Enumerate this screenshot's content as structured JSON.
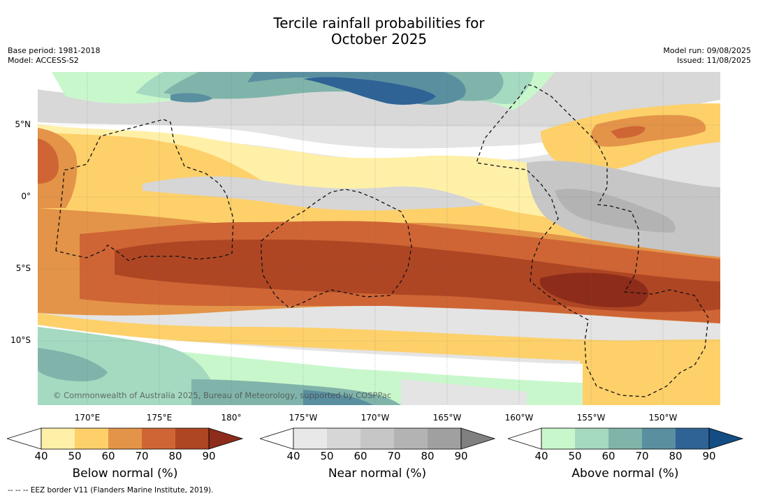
{
  "title_line1": "Tercile rainfall probabilities for",
  "title_line2": "October 2025",
  "base_period": "Base period: 1981-2018",
  "model": "Model: ACCESS-S2",
  "model_run": "Model run: 09/08/2025",
  "issued": "Issued: 11/08/2025",
  "lat_labels": [
    "5°N",
    "0°",
    "5°S",
    "10°S"
  ],
  "lon_labels": [
    "170°E",
    "175°E",
    "180°",
    "175°W",
    "170°W",
    "165°W",
    "160°W",
    "155°W",
    "150°W"
  ],
  "copyright": "© Commonwealth of Australia 2025, Bureau of Meteorology, supported by COSPPac",
  "colorbars": [
    {
      "title": "Below normal (%)",
      "ticks": [
        "40",
        "50",
        "60",
        "70",
        "80",
        "90"
      ],
      "colors": [
        "#fff0a8",
        "#fdd06a",
        "#e39448",
        "#cf6535",
        "#ae4624",
        "#8d2c1a"
      ]
    },
    {
      "title": "Near normal (%)",
      "ticks": [
        "40",
        "50",
        "60",
        "70",
        "80",
        "90"
      ],
      "colors": [
        "#e8e8e8",
        "#d6d6d6",
        "#c6c6c6",
        "#b3b3b3",
        "#a0a0a0",
        "#808080"
      ]
    },
    {
      "title": "Above normal (%)",
      "ticks": [
        "40",
        "50",
        "60",
        "70",
        "80",
        "90"
      ],
      "colors": [
        "#c9f7cc",
        "#a5d9c0",
        "#80b4aa",
        "#5a8fa0",
        "#2f6396",
        "#134d84"
      ]
    }
  ],
  "footnote": "--  --  -- EEZ border V11 (Flanders Marine Institute, 2019)."
}
